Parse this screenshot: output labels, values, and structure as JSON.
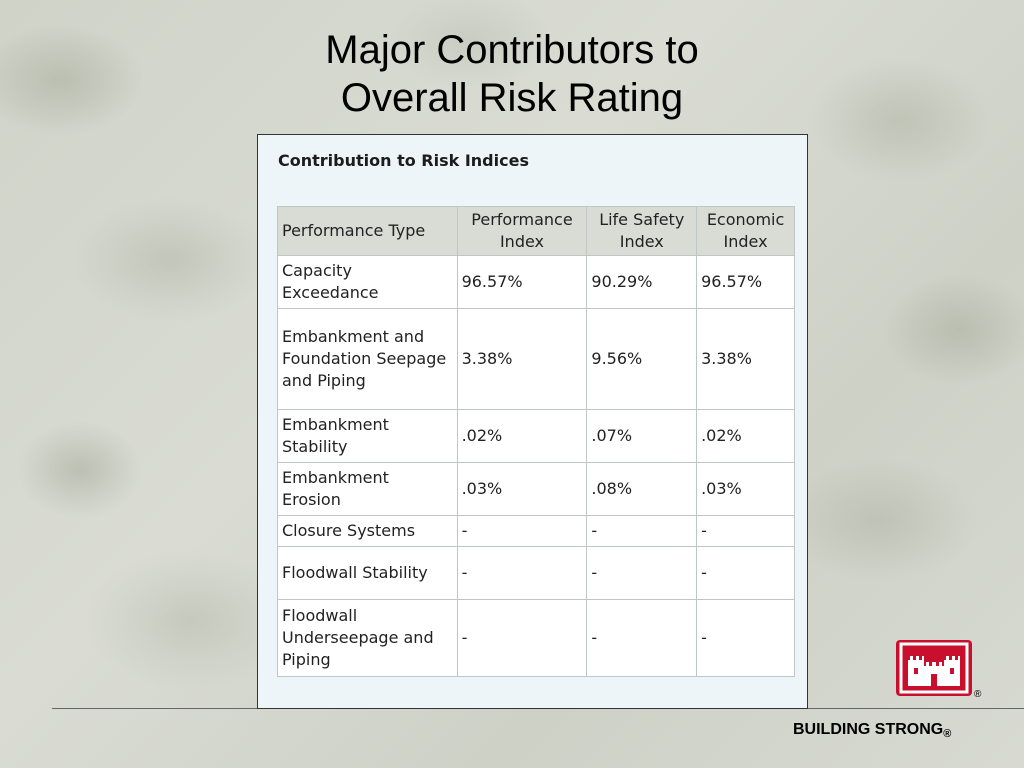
{
  "slide": {
    "title_line1": "Major Contributors to",
    "title_line2": "Overall Risk Rating"
  },
  "panel": {
    "title": "Contribution to Risk Indices"
  },
  "table": {
    "headers": [
      "Performance Type",
      "Performance Index",
      "Life Safety Index",
      "Economic Index"
    ],
    "rows": [
      {
        "type": "Capacity Exceedance",
        "performance": "96.57%",
        "life_safety": "90.29%",
        "economic": "96.57%"
      },
      {
        "type": "Embankment and Foundation Seepage and Piping",
        "performance": "3.38%",
        "life_safety": "9.56%",
        "economic": "3.38%"
      },
      {
        "type": "Embankment Stability",
        "performance": ".02%",
        "life_safety": ".07%",
        "economic": ".02%"
      },
      {
        "type": "Embankment Erosion",
        "performance": ".03%",
        "life_safety": ".08%",
        "economic": ".03%"
      },
      {
        "type": "Closure Systems",
        "performance": "-",
        "life_safety": "-",
        "economic": "-"
      },
      {
        "type": "Floodwall Stability",
        "performance": "-",
        "life_safety": "-",
        "economic": "-"
      },
      {
        "type": "Floodwall Underseepage and Piping",
        "performance": "-",
        "life_safety": "-",
        "economic": "-"
      }
    ]
  },
  "footer": {
    "brand_text": "BUILDING STRONG",
    "registered_mark": "®",
    "logo_icon": "castle-icon",
    "logo_color": "#c8102e"
  }
}
